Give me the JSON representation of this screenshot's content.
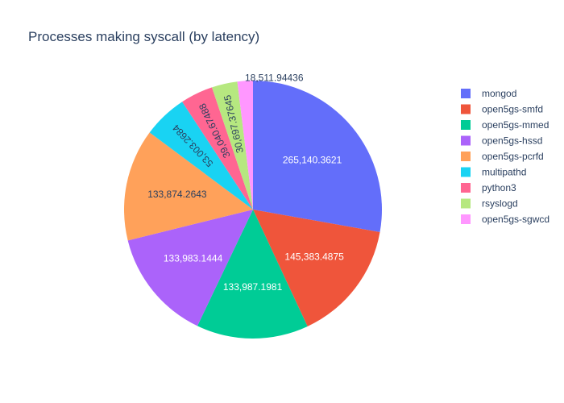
{
  "chart_data": {
    "type": "pie",
    "title": "Processes making syscall (by latency)",
    "legend_position": "right",
    "slices": [
      {
        "name": "mongod",
        "value": 265140.3621,
        "label": "265,140.3621",
        "color": "#636efa"
      },
      {
        "name": "open5gs-smfd",
        "value": 145383.4875,
        "label": "145,383.4875",
        "color": "#ef553b"
      },
      {
        "name": "open5gs-mmed",
        "value": 133987.1981,
        "label": "133,987.1981",
        "color": "#00cc96"
      },
      {
        "name": "open5gs-hssd",
        "value": 133983.1444,
        "label": "133,983.1444",
        "color": "#ab63fa"
      },
      {
        "name": "open5gs-pcrfd",
        "value": 133874.2643,
        "label": "133,874.2643",
        "color": "#ffa15a"
      },
      {
        "name": "multipathd",
        "value": 53003.2684,
        "label": "53,003.2684",
        "color": "#19d3f3"
      },
      {
        "name": "python3",
        "value": 39040.67488,
        "label": "39,040.67488",
        "color": "#ff6692"
      },
      {
        "name": "rsyslogd",
        "value": 30697.37645,
        "label": "30,697.37645",
        "color": "#b6e880"
      },
      {
        "name": "open5gs-sgwcd",
        "value": 18511.94436,
        "label": "18,511.94436",
        "color": "#ff97ff"
      }
    ]
  }
}
